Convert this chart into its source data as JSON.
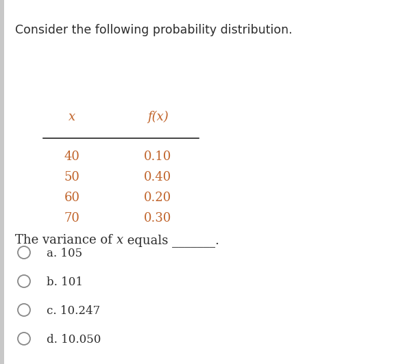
{
  "title": "Consider the following probability distribution.",
  "title_fontsize": 12.5,
  "title_color": "#2c2c2c",
  "table_x_col": "x",
  "table_fx_col": "f(x)",
  "table_x_vals": [
    "40",
    "50",
    "60",
    "70"
  ],
  "table_fx_vals": [
    "0.10",
    "0.40",
    "0.20",
    "0.30"
  ],
  "table_text_color": "#c0632a",
  "table_fontsize": 13,
  "question_prefix": "The variance of ",
  "question_x": "x",
  "question_suffix": " equals _______.",
  "question_fontsize": 13,
  "question_color": "#2c2c2c",
  "options": [
    "a. 105",
    "b. 101",
    "c. 10.247",
    "d. 10.050"
  ],
  "options_fontsize": 12,
  "options_color": "#2c2c2c",
  "bg_color": "#ffffff",
  "line_color": "#222222",
  "left_bar_color": "#c8c8c8"
}
